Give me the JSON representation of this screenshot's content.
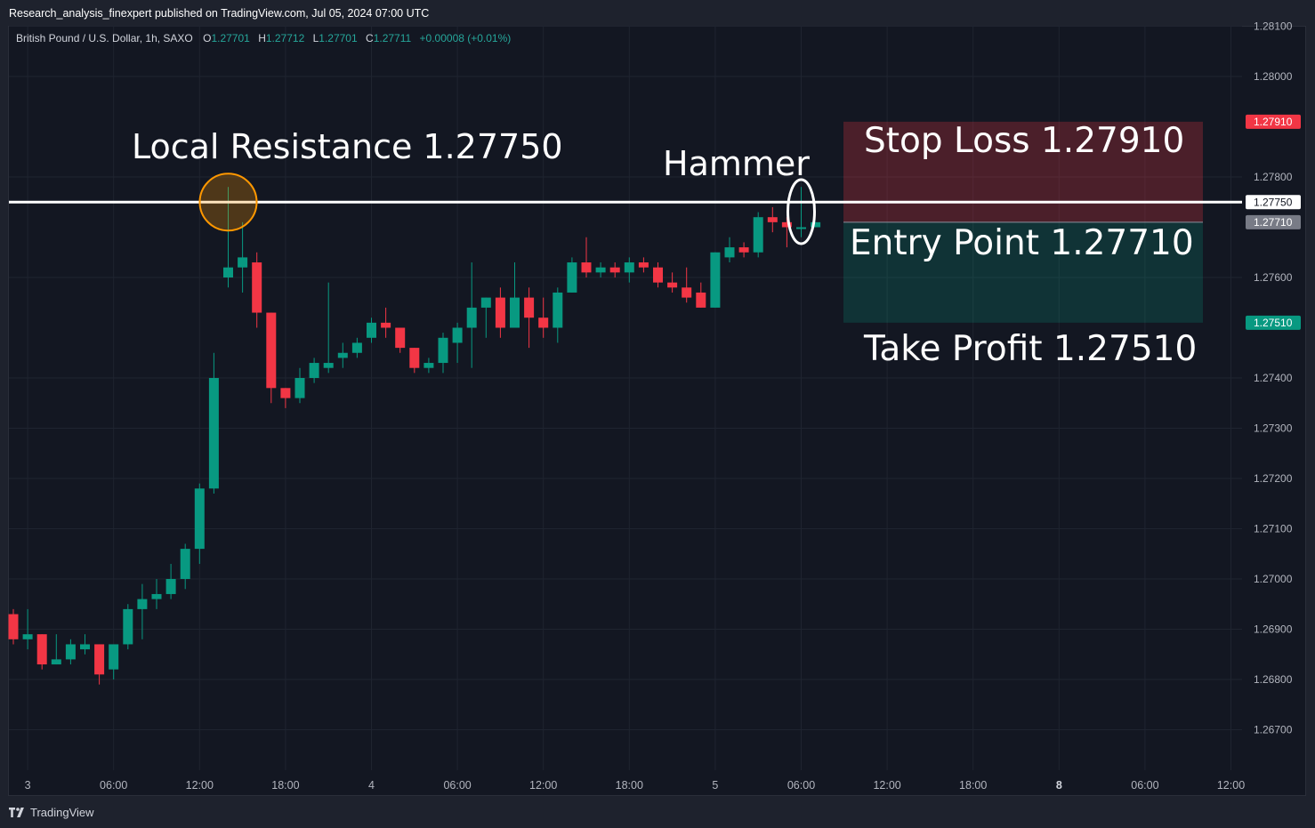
{
  "header": {
    "publisher": "Research_analysis_finexpert published on TradingView.com, Jul 05, 2024 07:00 UTC"
  },
  "legend": {
    "symbol": "British Pound / U.S. Dollar, 1h, SAXO",
    "o_label": "O",
    "o_value": "1.27701",
    "h_label": "H",
    "h_value": "1.27712",
    "l_label": "L",
    "l_value": "1.27701",
    "c_label": "C",
    "c_value": "1.27711",
    "change": "+0.00008 (+0.01%)"
  },
  "brand": {
    "name": "TradingView"
  },
  "colors": {
    "up": "#089981",
    "down": "#f23645",
    "background": "#131722",
    "grid": "#1f2430"
  },
  "chart_data": {
    "type": "candlestick",
    "price_ticks": [
      "1.28100",
      "1.28000",
      "1.27800",
      "1.27600",
      "1.27400",
      "1.27300",
      "1.27200",
      "1.27100",
      "1.27000",
      "1.26900",
      "1.26800",
      "1.26700"
    ],
    "price_tick_values": [
      1.281,
      1.28,
      1.278,
      1.276,
      1.274,
      1.273,
      1.272,
      1.271,
      1.27,
      1.269,
      1.268,
      1.267
    ],
    "ylim": [
      1.2657,
      1.2815
    ],
    "time_ticks": [
      {
        "label": "3",
        "i": 1,
        "bold": false
      },
      {
        "label": "06:00",
        "i": 7,
        "bold": false
      },
      {
        "label": "12:00",
        "i": 13,
        "bold": false
      },
      {
        "label": "18:00",
        "i": 19,
        "bold": false
      },
      {
        "label": "4",
        "i": 25,
        "bold": false
      },
      {
        "label": "06:00",
        "i": 31,
        "bold": false
      },
      {
        "label": "12:00",
        "i": 37,
        "bold": false
      },
      {
        "label": "18:00",
        "i": 43,
        "bold": false
      },
      {
        "label": "5",
        "i": 49,
        "bold": false
      },
      {
        "label": "06:00",
        "i": 55,
        "bold": false
      },
      {
        "label": "12:00",
        "i": 61,
        "bold": false
      },
      {
        "label": "18:00",
        "i": 67,
        "bold": false
      },
      {
        "label": "8",
        "i": 73,
        "bold": true
      },
      {
        "label": "06:00",
        "i": 79,
        "bold": false
      },
      {
        "label": "12:00",
        "i": 85,
        "bold": false
      }
    ],
    "candles": [
      {
        "o": 1.2693,
        "h": 1.2694,
        "l": 1.2687,
        "c": 1.2688
      },
      {
        "o": 1.2688,
        "h": 1.2694,
        "l": 1.2686,
        "c": 1.2689
      },
      {
        "o": 1.2689,
        "h": 1.2689,
        "l": 1.2682,
        "c": 1.2683
      },
      {
        "o": 1.2683,
        "h": 1.2689,
        "l": 1.2683,
        "c": 1.2684
      },
      {
        "o": 1.2684,
        "h": 1.2688,
        "l": 1.2683,
        "c": 1.2687
      },
      {
        "o": 1.2686,
        "h": 1.2689,
        "l": 1.2685,
        "c": 1.2687
      },
      {
        "o": 1.2687,
        "h": 1.2687,
        "l": 1.2679,
        "c": 1.2681
      },
      {
        "o": 1.2682,
        "h": 1.2687,
        "l": 1.268,
        "c": 1.2687
      },
      {
        "o": 1.2687,
        "h": 1.2695,
        "l": 1.2686,
        "c": 1.2694
      },
      {
        "o": 1.2694,
        "h": 1.2699,
        "l": 1.2688,
        "c": 1.2696
      },
      {
        "o": 1.2696,
        "h": 1.27,
        "l": 1.2694,
        "c": 1.2697
      },
      {
        "o": 1.2697,
        "h": 1.2703,
        "l": 1.2696,
        "c": 1.27
      },
      {
        "o": 1.27,
        "h": 1.2707,
        "l": 1.2698,
        "c": 1.2706
      },
      {
        "o": 1.2706,
        "h": 1.2719,
        "l": 1.2703,
        "c": 1.2718
      },
      {
        "o": 1.2718,
        "h": 1.2745,
        "l": 1.2717,
        "c": 1.274
      },
      {
        "o": 1.276,
        "h": 1.2778,
        "l": 1.2758,
        "c": 1.2762
      },
      {
        "o": 1.2762,
        "h": 1.2771,
        "l": 1.2757,
        "c": 1.2764
      },
      {
        "o": 1.2763,
        "h": 1.2765,
        "l": 1.275,
        "c": 1.2753
      },
      {
        "o": 1.2753,
        "h": 1.2753,
        "l": 1.2735,
        "c": 1.2738
      },
      {
        "o": 1.2738,
        "h": 1.2738,
        "l": 1.2734,
        "c": 1.2736
      },
      {
        "o": 1.2736,
        "h": 1.2742,
        "l": 1.2735,
        "c": 1.274
      },
      {
        "o": 1.274,
        "h": 1.2744,
        "l": 1.2739,
        "c": 1.2743
      },
      {
        "o": 1.2742,
        "h": 1.2759,
        "l": 1.2741,
        "c": 1.2743
      },
      {
        "o": 1.2744,
        "h": 1.2747,
        "l": 1.2742,
        "c": 1.2745
      },
      {
        "o": 1.2745,
        "h": 1.2748,
        "l": 1.2744,
        "c": 1.2747
      },
      {
        "o": 1.2748,
        "h": 1.2752,
        "l": 1.2747,
        "c": 1.2751
      },
      {
        "o": 1.2751,
        "h": 1.2754,
        "l": 1.2748,
        "c": 1.275
      },
      {
        "o": 1.275,
        "h": 1.275,
        "l": 1.2745,
        "c": 1.2746
      },
      {
        "o": 1.2746,
        "h": 1.2746,
        "l": 1.2741,
        "c": 1.2742
      },
      {
        "o": 1.2742,
        "h": 1.2744,
        "l": 1.2741,
        "c": 1.2743
      },
      {
        "o": 1.2743,
        "h": 1.2749,
        "l": 1.2741,
        "c": 1.2748
      },
      {
        "o": 1.2747,
        "h": 1.2751,
        "l": 1.2743,
        "c": 1.275
      },
      {
        "o": 1.275,
        "h": 1.2763,
        "l": 1.2742,
        "c": 1.2754
      },
      {
        "o": 1.2754,
        "h": 1.2756,
        "l": 1.2748,
        "c": 1.2756
      },
      {
        "o": 1.2756,
        "h": 1.2758,
        "l": 1.2748,
        "c": 1.275
      },
      {
        "o": 1.275,
        "h": 1.2763,
        "l": 1.275,
        "c": 1.2756
      },
      {
        "o": 1.2756,
        "h": 1.2758,
        "l": 1.2746,
        "c": 1.2752
      },
      {
        "o": 1.2752,
        "h": 1.2756,
        "l": 1.2748,
        "c": 1.275
      },
      {
        "o": 1.275,
        "h": 1.2758,
        "l": 1.2747,
        "c": 1.2757
      },
      {
        "o": 1.2757,
        "h": 1.2764,
        "l": 1.2757,
        "c": 1.2763
      },
      {
        "o": 1.2763,
        "h": 1.2768,
        "l": 1.276,
        "c": 1.2761
      },
      {
        "o": 1.2761,
        "h": 1.2763,
        "l": 1.276,
        "c": 1.2762
      },
      {
        "o": 1.2762,
        "h": 1.2763,
        "l": 1.276,
        "c": 1.2761
      },
      {
        "o": 1.2761,
        "h": 1.2764,
        "l": 1.2759,
        "c": 1.2763
      },
      {
        "o": 1.2763,
        "h": 1.2764,
        "l": 1.2761,
        "c": 1.2762
      },
      {
        "o": 1.2762,
        "h": 1.2763,
        "l": 1.2758,
        "c": 1.2759
      },
      {
        "o": 1.2759,
        "h": 1.2761,
        "l": 1.2757,
        "c": 1.2758
      },
      {
        "o": 1.2758,
        "h": 1.2762,
        "l": 1.2755,
        "c": 1.2756
      },
      {
        "o": 1.2757,
        "h": 1.2759,
        "l": 1.2754,
        "c": 1.2754
      },
      {
        "o": 1.2754,
        "h": 1.2765,
        "l": 1.2754,
        "c": 1.2765
      },
      {
        "o": 1.2764,
        "h": 1.2768,
        "l": 1.2763,
        "c": 1.2766
      },
      {
        "o": 1.2766,
        "h": 1.2767,
        "l": 1.2764,
        "c": 1.2765
      },
      {
        "o": 1.2765,
        "h": 1.2773,
        "l": 1.2764,
        "c": 1.2772
      },
      {
        "o": 1.2772,
        "h": 1.2774,
        "l": 1.2769,
        "c": 1.2771
      },
      {
        "o": 1.2771,
        "h": 1.2772,
        "l": 1.2766,
        "c": 1.277
      },
      {
        "o": 1.277,
        "h": 1.2778,
        "l": 1.2768,
        "c": 1.277
      },
      {
        "o": 1.277,
        "h": 1.2771,
        "l": 1.277,
        "c": 1.2771
      }
    ],
    "levels": {
      "resistance": 1.2775,
      "stop_loss": 1.2791,
      "entry": 1.2771,
      "take_profit": 1.2751
    },
    "axis_badges": [
      {
        "label": "1.27910",
        "kind": "stop"
      },
      {
        "label": "1.27750",
        "kind": "resistance"
      },
      {
        "label": "1.27710",
        "kind": "entry"
      },
      {
        "label": "1.27510",
        "kind": "target"
      }
    ],
    "annotations": {
      "resistance_text": "Local Resistance 1.27750",
      "hammer_text": "Hammer",
      "stop_text": "Stop Loss 1.27910",
      "entry_text": "Entry Point 1.27710",
      "target_text": "Take Profit 1.27510"
    }
  }
}
